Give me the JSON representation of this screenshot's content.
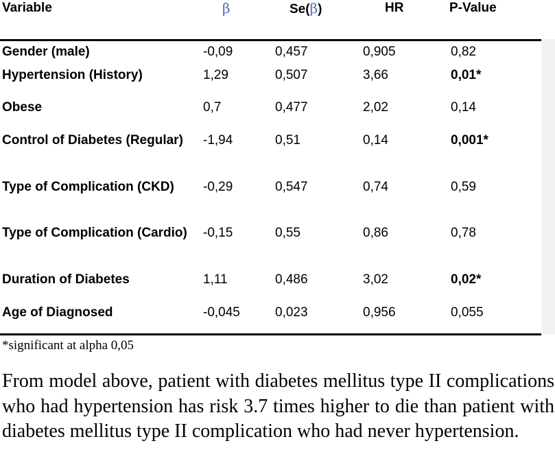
{
  "table": {
    "headers": {
      "variable": "Variable",
      "beta": "β",
      "se_prefix": "Se(",
      "se_beta": "β",
      "se_suffix": ")",
      "hr": "HR",
      "pvalue": "P-Value"
    },
    "rows": [
      {
        "variable": "Gender (male)",
        "beta": "-0,09",
        "se": "0,457",
        "hr": "0,905",
        "p": "0,82",
        "significant": false
      },
      {
        "variable": "Hypertension (History)",
        "beta": "1,29",
        "se": "0,507",
        "hr": "3,66",
        "p": "0,01*",
        "significant": true
      },
      {
        "variable": "Obese",
        "beta": "0,7",
        "se": "0,477",
        "hr": "2,02",
        "p": "0,14",
        "significant": false
      },
      {
        "variable": "Control of Diabetes (Regular)",
        "beta": "-1,94",
        "se": "0,51",
        "hr": "0,14",
        "p": "0,001*",
        "significant": true
      },
      {
        "variable": "Type of Complication (CKD)",
        "beta": "-0,29",
        "se": "0,547",
        "hr": "0,74",
        "p": "0,59",
        "significant": false
      },
      {
        "variable": "Type of Complication (Cardio)",
        "beta": "-0,15",
        "se": "0,55",
        "hr": "0,86",
        "p": "0,78",
        "significant": false
      },
      {
        "variable": "Duration of Diabetes",
        "beta": "1,11",
        "se": "0,486",
        "hr": "3,02",
        "p": "0,02*",
        "significant": true
      },
      {
        "variable": "Age of Diagnosed",
        "beta": "-0,045",
        "se": "0,023",
        "hr": "0,956",
        "p": "0,055",
        "significant": false
      }
    ],
    "footnote": "*significant at alpha 0,05"
  },
  "paragraph": "From model above, patient with diabetes mellitus type II complications who had hypertension has risk 3.7 times higher to die than patient with diabetes mellitus type II complication who had never hypertension.",
  "colors": {
    "beta_symbol": "#4b6fb5",
    "right_shade": "#f2f2f2"
  }
}
